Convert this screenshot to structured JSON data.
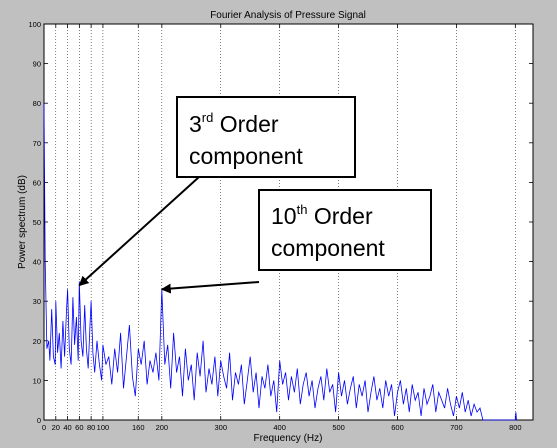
{
  "chart_data": {
    "type": "line",
    "title": "Fourier Analysis of Pressure Signal",
    "xlabel": "Frequency (Hz)",
    "ylabel": "Power spectrum (dB)",
    "xlim": [
      0,
      830
    ],
    "ylim": [
      0,
      100
    ],
    "x_ticks": [
      0,
      20,
      40,
      60,
      80,
      100,
      160,
      200,
      300,
      400,
      500,
      600,
      700,
      800
    ],
    "y_ticks": [
      0,
      10,
      20,
      30,
      40,
      50,
      60,
      70,
      80,
      90,
      100
    ],
    "grid": "vertical dotted lines at x ticks",
    "line_color": "#0000ff",
    "series": [
      {
        "x": [
          0,
          2,
          5,
          8,
          10,
          13,
          16,
          19,
          20,
          23,
          26,
          29,
          32,
          35,
          38,
          40,
          43,
          46,
          49,
          52,
          55,
          58,
          60,
          63,
          66,
          69,
          72,
          75,
          78,
          80,
          83,
          86,
          90,
          94,
          98,
          100,
          105,
          110,
          115,
          120,
          125,
          130,
          135,
          140,
          145,
          150,
          155,
          160,
          165,
          170,
          175,
          180,
          185,
          190,
          195,
          200,
          205,
          210,
          215,
          220,
          225,
          230,
          235,
          240,
          245,
          250,
          255,
          260,
          265,
          270,
          275,
          280,
          285,
          290,
          295,
          300,
          305,
          310,
          315,
          320,
          325,
          330,
          335,
          340,
          345,
          350,
          355,
          360,
          365,
          370,
          375,
          380,
          385,
          390,
          395,
          400,
          405,
          410,
          415,
          420,
          425,
          430,
          435,
          440,
          445,
          450,
          455,
          460,
          465,
          470,
          475,
          480,
          485,
          490,
          495,
          500,
          505,
          510,
          515,
          520,
          525,
          530,
          535,
          540,
          545,
          550,
          555,
          560,
          565,
          570,
          575,
          580,
          585,
          590,
          595,
          600,
          605,
          610,
          615,
          620,
          625,
          630,
          635,
          640,
          645,
          650,
          655,
          660,
          665,
          670,
          675,
          680,
          685,
          690,
          695,
          700,
          705,
          710,
          715,
          720,
          725,
          730,
          735,
          740,
          745,
          800,
          801,
          802
        ],
        "y": [
          80,
          40,
          18,
          20,
          15,
          28,
          16,
          14,
          30,
          17,
          22,
          13,
          25,
          16,
          27,
          33,
          18,
          14,
          31,
          19,
          26,
          15,
          35,
          20,
          16,
          29,
          18,
          13,
          24,
          30,
          17,
          12,
          20,
          14,
          10,
          19,
          14,
          16,
          9,
          18,
          12,
          22,
          8,
          16,
          24,
          11,
          6,
          18,
          14,
          20,
          9,
          15,
          12,
          17,
          10,
          33,
          14,
          19,
          8,
          22,
          12,
          16,
          6,
          18,
          10,
          14,
          5,
          17,
          11,
          20,
          7,
          13,
          9,
          16,
          6,
          15,
          11,
          8,
          17,
          5,
          12,
          9,
          14,
          4,
          10,
          16,
          7,
          12,
          3,
          11,
          8,
          14,
          6,
          10,
          2,
          15,
          9,
          12,
          5,
          11,
          7,
          13,
          4,
          9,
          12,
          6,
          10,
          3,
          8,
          11,
          5,
          13,
          7,
          9,
          2,
          12,
          6,
          10,
          4,
          8,
          11,
          3,
          9,
          6,
          10,
          2,
          7,
          11,
          5,
          8,
          3,
          10,
          6,
          9,
          1,
          7,
          10,
          4,
          8,
          2,
          9,
          5,
          7,
          1,
          8,
          4,
          6,
          9,
          2,
          7,
          5,
          3,
          8,
          4,
          1,
          6,
          3,
          7,
          2,
          5,
          1,
          4,
          2,
          3,
          0,
          0,
          2,
          0
        ]
      }
    ],
    "annotations": [
      {
        "base": "3",
        "sup": "rd",
        "text": "Order component",
        "line1": " Order",
        "line2": "component",
        "arrow_to": [
          60,
          34
        ]
      },
      {
        "base": "10",
        "sup": "th",
        "text": "Order component",
        "line1": " Order",
        "line2": "component",
        "arrow_to": [
          200,
          33
        ]
      }
    ]
  }
}
